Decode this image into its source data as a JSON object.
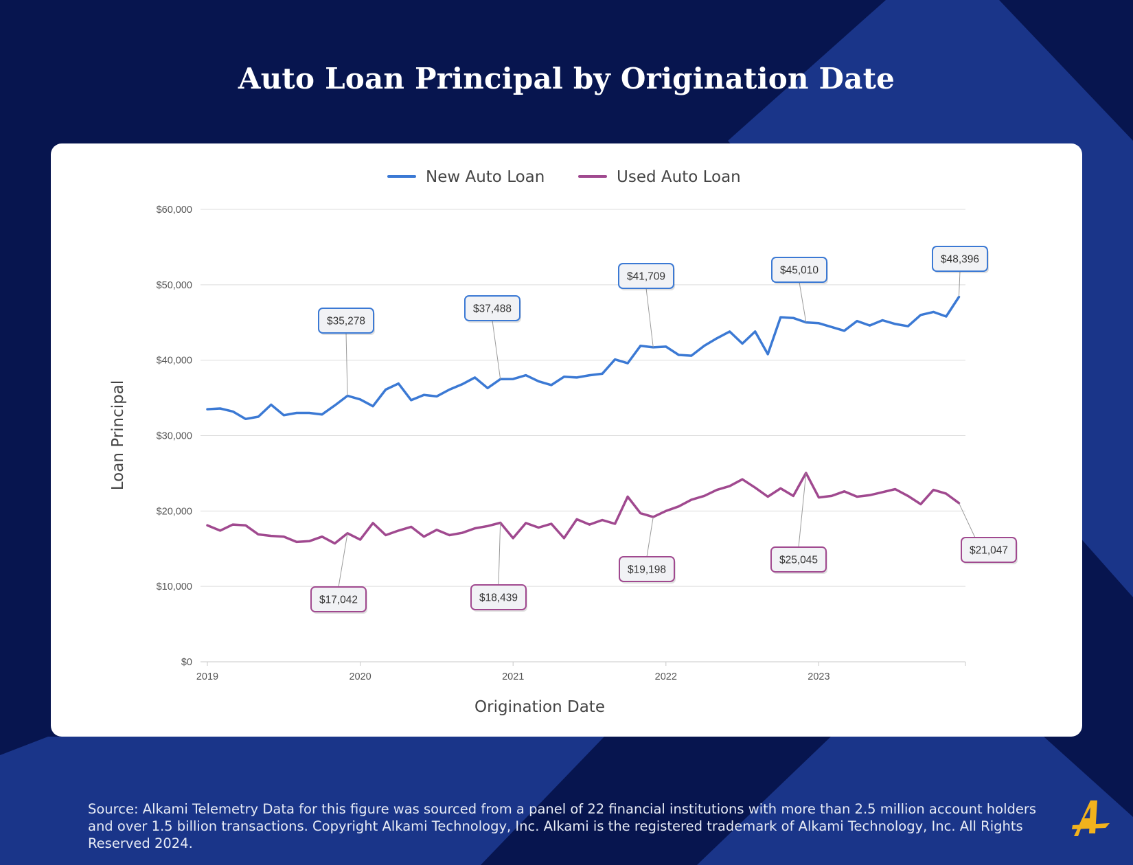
{
  "title": "Auto Loan Principal by Origination Date",
  "source_text": "Source:  Alkami Telemetry Data for this figure was sourced from a panel of 22 financial institutions with more than 2.5 million account holders and over 1.5 billion transactions. Copyright Alkami Technology, Inc. Alkami is the registered trademark of Alkami Technology, Inc. All Rights Reserved 2024.",
  "colors": {
    "background": "#07154f",
    "background_band": "#1a3589",
    "new_auto_loan": "#3b79d4",
    "used_auto_loan": "#a0498f",
    "logo": "#f2b21c"
  },
  "logo_icon": "alkami-logo-icon",
  "chart_data": {
    "type": "line",
    "xlabel": "Origination Date",
    "ylabel": "Loan Principal",
    "ylim": [
      0,
      60000
    ],
    "yticks": [
      0,
      10000,
      20000,
      30000,
      40000,
      50000,
      60000
    ],
    "ytick_labels": [
      "$0",
      "$10,000",
      "$20,000",
      "$30,000",
      "$40,000",
      "$50,000",
      "$60,000"
    ],
    "xlim": [
      "2019-01",
      "2023-12"
    ],
    "xtick_labels": [
      "2019",
      "2020",
      "2021",
      "2022",
      "2023"
    ],
    "grid": "horizontal",
    "legend_position": "top-center",
    "x": [
      "2019-01",
      "2019-02",
      "2019-03",
      "2019-04",
      "2019-05",
      "2019-06",
      "2019-07",
      "2019-08",
      "2019-09",
      "2019-10",
      "2019-11",
      "2019-12",
      "2020-01",
      "2020-02",
      "2020-03",
      "2020-04",
      "2020-05",
      "2020-06",
      "2020-07",
      "2020-08",
      "2020-09",
      "2020-10",
      "2020-11",
      "2020-12",
      "2021-01",
      "2021-02",
      "2021-03",
      "2021-04",
      "2021-05",
      "2021-06",
      "2021-07",
      "2021-08",
      "2021-09",
      "2021-10",
      "2021-11",
      "2021-12",
      "2022-01",
      "2022-02",
      "2022-03",
      "2022-04",
      "2022-05",
      "2022-06",
      "2022-07",
      "2022-08",
      "2022-09",
      "2022-10",
      "2022-11",
      "2022-12",
      "2023-01",
      "2023-02",
      "2023-03",
      "2023-04",
      "2023-05",
      "2023-06",
      "2023-07",
      "2023-08",
      "2023-09",
      "2023-10",
      "2023-11",
      "2023-12"
    ],
    "series": [
      {
        "name": "New Auto Loan",
        "color": "#3b79d4",
        "values": [
          33500,
          33600,
          33200,
          32200,
          32500,
          34100,
          32700,
          33000,
          33000,
          32800,
          34000,
          35278,
          34800,
          33900,
          36100,
          36900,
          34700,
          35400,
          35200,
          36100,
          36800,
          37700,
          36300,
          37488,
          37500,
          38000,
          37200,
          36700,
          37800,
          37700,
          38000,
          38200,
          40100,
          39600,
          41900,
          41709,
          41800,
          40700,
          40600,
          41900,
          42900,
          43800,
          42200,
          43800,
          40800,
          45700,
          45600,
          45010,
          44900,
          44400,
          43900,
          45200,
          44600,
          45300,
          44800,
          44500,
          46000,
          46400,
          45800,
          48396
        ],
        "labels": [
          {
            "index": 11,
            "text": "$35,278"
          },
          {
            "index": 23,
            "text": "$37,488"
          },
          {
            "index": 35,
            "text": "$41,709"
          },
          {
            "index": 47,
            "text": "$45,010"
          },
          {
            "index": 59,
            "text": "$48,396"
          }
        ]
      },
      {
        "name": "Used Auto Loan",
        "color": "#a0498f",
        "values": [
          18100,
          17400,
          18200,
          18100,
          16900,
          16700,
          16600,
          15900,
          16000,
          16600,
          15700,
          17042,
          16200,
          18400,
          16800,
          17400,
          17900,
          16600,
          17500,
          16800,
          17100,
          17700,
          18000,
          18439,
          16400,
          18400,
          17800,
          18300,
          16400,
          18900,
          18200,
          18800,
          18300,
          21900,
          19700,
          19198,
          20000,
          20600,
          21500,
          22000,
          22800,
          23300,
          24200,
          23100,
          21900,
          23000,
          22000,
          25045,
          21800,
          22000,
          22600,
          21900,
          22100,
          22500,
          22900,
          22000,
          20900,
          22800,
          22300,
          21047
        ],
        "labels": [
          {
            "index": 11,
            "text": "$17,042"
          },
          {
            "index": 23,
            "text": "$18,439"
          },
          {
            "index": 35,
            "text": "$19,198"
          },
          {
            "index": 47,
            "text": "$25,045"
          },
          {
            "index": 59,
            "text": "$21,047"
          }
        ]
      }
    ]
  }
}
